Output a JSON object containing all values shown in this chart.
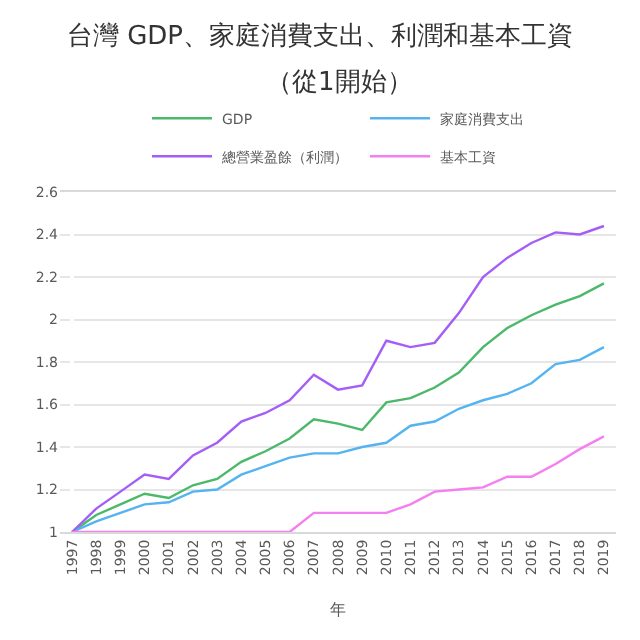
{
  "chart_data": {
    "type": "line",
    "title": "台灣 GDP、家庭消費支出、利潤和基本工資",
    "subtitle": "（從1開始）",
    "xlabel": "年",
    "categories": [
      "1997",
      "1998",
      "1999",
      "2000",
      "2001",
      "2002",
      "2003",
      "2004",
      "2005",
      "2006",
      "2007",
      "2008",
      "2009",
      "2010",
      "2011",
      "2012",
      "2013",
      "2014",
      "2015",
      "2016",
      "2017",
      "2018",
      "2019"
    ],
    "series": [
      {
        "name": "GDP",
        "color": "#4cb86a",
        "values": [
          1.0,
          1.08,
          1.13,
          1.18,
          1.16,
          1.22,
          1.25,
          1.33,
          1.38,
          1.44,
          1.53,
          1.51,
          1.48,
          1.61,
          1.63,
          1.68,
          1.75,
          1.87,
          1.96,
          2.02,
          2.07,
          2.11,
          2.17
        ]
      },
      {
        "name": "家庭消費支出",
        "color": "#55b4f0",
        "values": [
          1.0,
          1.05,
          1.09,
          1.13,
          1.14,
          1.19,
          1.2,
          1.27,
          1.31,
          1.35,
          1.37,
          1.37,
          1.4,
          1.42,
          1.5,
          1.52,
          1.58,
          1.62,
          1.65,
          1.7,
          1.79,
          1.81,
          1.87
        ]
      },
      {
        "name": "總營業盈餘（利潤）",
        "color": "#a45ef5",
        "values": [
          1.0,
          1.11,
          1.19,
          1.27,
          1.25,
          1.36,
          1.42,
          1.52,
          1.56,
          1.62,
          1.74,
          1.67,
          1.69,
          1.9,
          1.87,
          1.89,
          2.03,
          2.2,
          2.29,
          2.36,
          2.41,
          2.4,
          2.44
        ]
      },
      {
        "name": "基本工資",
        "color": "#f57ef0",
        "values": [
          1.0,
          1.0,
          1.0,
          1.0,
          1.0,
          1.0,
          1.0,
          1.0,
          1.0,
          1.0,
          1.09,
          1.09,
          1.09,
          1.09,
          1.13,
          1.19,
          1.2,
          1.21,
          1.26,
          1.26,
          1.32,
          1.39,
          1.45
        ]
      }
    ],
    "ylim": [
      1,
      2.6
    ],
    "yticks": [
      1,
      1.2,
      1.4,
      1.6,
      1.8,
      2,
      2.2,
      2.4,
      2.6
    ],
    "grid": "y",
    "legend": "top",
    "marker": "none",
    "line_style": "solid"
  }
}
